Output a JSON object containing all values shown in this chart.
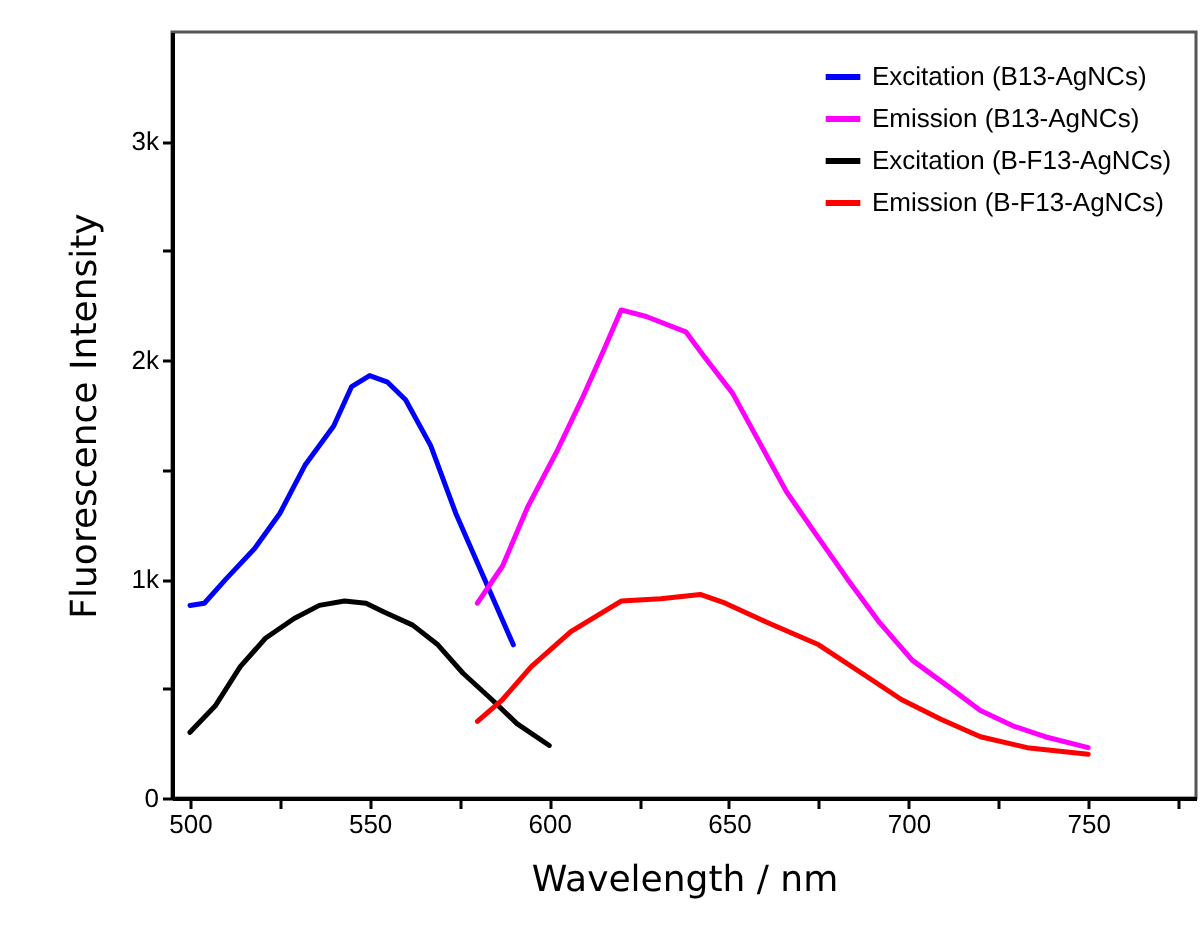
{
  "chart_data": {
    "type": "line",
    "xlabel": "Wavelength / nm",
    "ylabel": "Fluorescence Intensity",
    "xlim": [
      495,
      780
    ],
    "ylim": [
      0,
      3500
    ],
    "xticks": [
      500,
      {
        "value": 525,
        "label": null
      },
      550,
      {
        "value": 575,
        "label": null
      },
      600,
      {
        "value": 625,
        "label": null
      },
      650,
      {
        "value": 675,
        "label": null
      },
      700,
      {
        "value": 725,
        "label": null
      },
      750,
      {
        "value": 775,
        "label": null
      }
    ],
    "yticks": [
      {
        "value": 0,
        "label": "0"
      },
      {
        "value": 500,
        "label": null
      },
      {
        "value": 1000,
        "label": "1k"
      },
      {
        "value": 1500,
        "label": null
      },
      {
        "value": 2000,
        "label": "2k"
      },
      {
        "value": 2500,
        "label": null
      },
      {
        "value": 3000,
        "label": "3k"
      }
    ],
    "grid": false,
    "legend": "top right",
    "line_style": "solid",
    "marker": "none",
    "series": [
      {
        "name": "Excitation (B13-AgNCs)",
        "color": "#0000ff",
        "x": [
          500,
          504,
          510,
          518,
          525,
          532,
          540,
          545,
          550,
          555,
          560,
          567,
          574,
          582,
          590
        ],
        "values": [
          880,
          890,
          1000,
          1140,
          1300,
          1520,
          1700,
          1880,
          1930,
          1900,
          1820,
          1610,
          1300,
          1000,
          700
        ]
      },
      {
        "name": "Emission (B13-AgNCs)",
        "color": "#ff00ff",
        "x": [
          580,
          587,
          594,
          602,
          609,
          615,
          620,
          627,
          638,
          643,
          651,
          659,
          666,
          674,
          683,
          692,
          701,
          711,
          720,
          729,
          738,
          750
        ],
        "values": [
          890,
          1060,
          1330,
          1580,
          1820,
          2040,
          2230,
          2200,
          2130,
          2020,
          1850,
          1610,
          1400,
          1210,
          1000,
          800,
          630,
          510,
          400,
          330,
          280,
          230
        ]
      },
      {
        "name": "Excitation (B-F13-AgNCs)",
        "color": "#000000",
        "x": [
          500,
          507,
          514,
          521,
          529,
          536,
          543,
          549,
          554,
          562,
          569,
          576,
          584,
          591,
          600
        ],
        "values": [
          300,
          420,
          600,
          730,
          820,
          880,
          900,
          890,
          850,
          790,
          700,
          570,
          450,
          340,
          240
        ]
      },
      {
        "name": "Emission (B-F13-AgNCs)",
        "color": "#ff0000",
        "x": [
          580,
          587,
          595,
          606,
          613,
          620,
          631,
          642,
          649,
          661,
          675,
          687,
          698,
          709,
          720,
          733,
          750
        ],
        "values": [
          350,
          450,
          600,
          760,
          830,
          900,
          910,
          930,
          890,
          800,
          700,
          570,
          450,
          360,
          280,
          230,
          200
        ]
      }
    ]
  }
}
